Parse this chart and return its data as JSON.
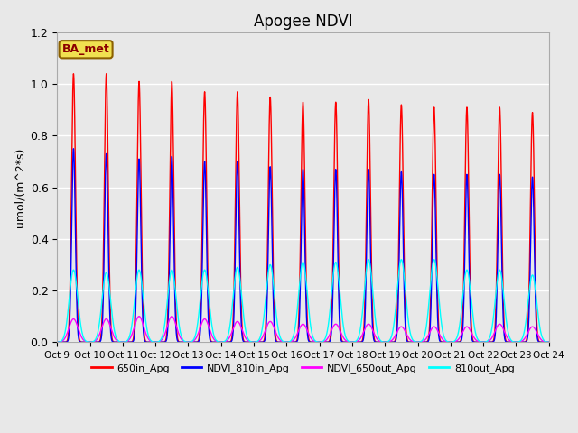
{
  "title": "Apogee NDVI",
  "ylabel": "umol/(m^2*s)",
  "ylim": [
    0,
    1.2
  ],
  "yticks": [
    0.0,
    0.2,
    0.4,
    0.6,
    0.8,
    1.0,
    1.2
  ],
  "xtick_labels": [
    "Oct 9",
    "Oct 10",
    "Oct 11",
    "Oct 12",
    "Oct 13",
    "Oct 14",
    "Oct 15",
    "Oct 16",
    "Oct 17",
    "Oct 18",
    "Oct 19",
    "Oct 20",
    "Oct 21",
    "Oct 22",
    "Oct 23",
    "Oct 24"
  ],
  "legend_box_label": "BA_met",
  "n_days": 15,
  "series_names": [
    "650in_Apg",
    "NDVI_810in_Apg",
    "NDVI_650out_Apg",
    "810out_Apg"
  ],
  "series_colors": [
    "red",
    "blue",
    "magenta",
    "cyan"
  ],
  "peak_heights": {
    "650in_Apg": [
      1.04,
      1.04,
      1.01,
      1.01,
      0.97,
      0.97,
      0.95,
      0.93,
      0.93,
      0.94,
      0.92,
      0.91,
      0.91,
      0.91,
      0.89
    ],
    "NDVI_810in_Apg": [
      0.75,
      0.73,
      0.71,
      0.72,
      0.7,
      0.7,
      0.68,
      0.67,
      0.67,
      0.67,
      0.66,
      0.65,
      0.65,
      0.65,
      0.64
    ],
    "NDVI_650out_Apg": [
      0.09,
      0.09,
      0.1,
      0.1,
      0.09,
      0.08,
      0.08,
      0.07,
      0.07,
      0.07,
      0.06,
      0.06,
      0.06,
      0.07,
      0.06
    ],
    "810out_Apg": [
      0.28,
      0.27,
      0.28,
      0.28,
      0.28,
      0.29,
      0.3,
      0.31,
      0.31,
      0.32,
      0.32,
      0.32,
      0.28,
      0.28,
      0.26
    ]
  },
  "pulse_widths": {
    "650in_Apg": 0.06,
    "NDVI_810in_Apg": 0.055,
    "NDVI_650out_Apg": 0.14,
    "810out_Apg": 0.13
  },
  "background_color": "#e8e8e8",
  "plot_bg_color": "#e8e8e8",
  "grid_color": "white",
  "legend_entries": [
    "650in_Apg",
    "NDVI_810in_Apg",
    "NDVI_650out_Apg",
    "810out_Apg"
  ],
  "legend_colors": [
    "red",
    "blue",
    "magenta",
    "cyan"
  ]
}
